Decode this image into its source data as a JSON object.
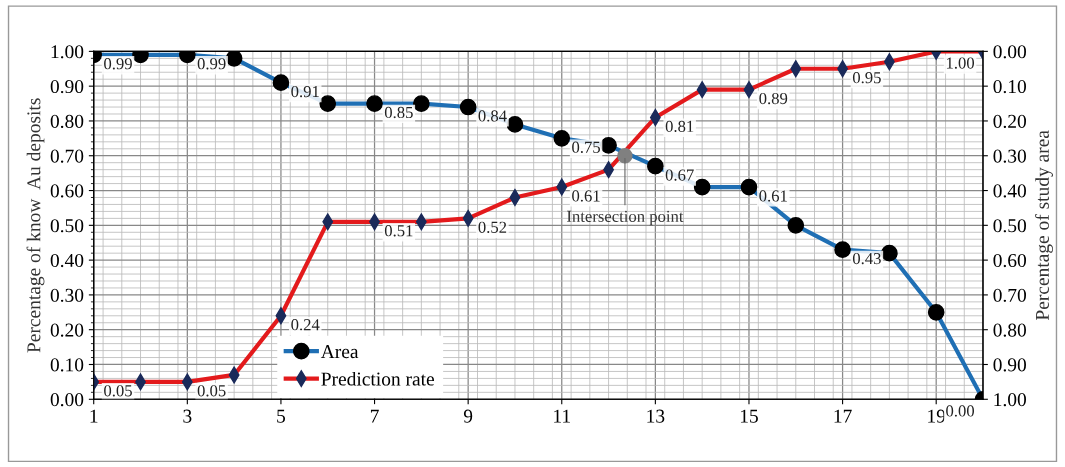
{
  "chart_data": {
    "type": "line",
    "ylabel": "Percentage of know  Au deposits",
    "y2label": "Percentage of study area",
    "x": [
      1,
      2,
      3,
      4,
      5,
      6,
      7,
      8,
      9,
      10,
      11,
      12,
      13,
      14,
      15,
      16,
      17,
      18,
      19,
      20
    ],
    "xlim": [
      1,
      20
    ],
    "xticks": [
      1,
      3,
      5,
      7,
      9,
      11,
      13,
      15,
      17,
      19
    ],
    "ylim": [
      0,
      1.0
    ],
    "yticks": [
      {
        "value": 0,
        "label": "0.00"
      },
      {
        "value": 0.1,
        "label": "0.10"
      },
      {
        "value": 0.2,
        "label": "0.20"
      },
      {
        "value": 0.3,
        "label": "0.30"
      },
      {
        "value": 0.4,
        "label": "0.40"
      },
      {
        "value": 0.5,
        "label": "0.50"
      },
      {
        "value": 0.6,
        "label": "0.60"
      },
      {
        "value": 0.7,
        "label": "0.70"
      },
      {
        "value": 0.8,
        "label": "0.80"
      },
      {
        "value": 0.9,
        "label": "0.90"
      },
      {
        "value": 1.0,
        "label": "1.00"
      }
    ],
    "y2lim": [
      1.0,
      0
    ],
    "y2ticks": [
      {
        "value": 0,
        "label": "0.00"
      },
      {
        "value": 0.1,
        "label": "0.10"
      },
      {
        "value": 0.2,
        "label": "0.20"
      },
      {
        "value": 0.3,
        "label": "0.30"
      },
      {
        "value": 0.4,
        "label": "0.40"
      },
      {
        "value": 0.5,
        "label": "0.50"
      },
      {
        "value": 0.6,
        "label": "0.60"
      },
      {
        "value": 0.7,
        "label": "0.70"
      },
      {
        "value": 0.8,
        "label": "0.80"
      },
      {
        "value": 0.9,
        "label": "0.90"
      },
      {
        "value": 1.0,
        "label": "1.00"
      }
    ],
    "grid": true,
    "legend": "bottom left",
    "line_style": "solid",
    "series": [
      {
        "name": "Area",
        "color": "#1f6fb4",
        "marker": "circle",
        "values": [
          0.99,
          0.99,
          0.99,
          0.98,
          0.91,
          0.85,
          0.85,
          0.85,
          0.84,
          0.79,
          0.75,
          0.73,
          0.67,
          0.61,
          0.61,
          0.5,
          0.43,
          0.42,
          0.25,
          0.0
        ],
        "value_labels": [
          "0.99",
          null,
          "0.99",
          null,
          "0.91",
          null,
          "0.85",
          null,
          "0.84",
          null,
          "0.75",
          null,
          "0.67",
          null,
          "0.61",
          null,
          "0.43",
          null,
          null,
          "0.00"
        ]
      },
      {
        "name": "Prediction rate",
        "color": "#e31a1c",
        "marker": "diamond",
        "values": [
          0.05,
          0.05,
          0.05,
          0.07,
          0.24,
          0.51,
          0.51,
          0.51,
          0.52,
          0.58,
          0.61,
          0.66,
          0.81,
          0.89,
          0.89,
          0.95,
          0.95,
          0.97,
          1.0,
          1.0
        ],
        "value_labels": [
          "0.05",
          null,
          "0.05",
          null,
          "0.24",
          null,
          "0.51",
          null,
          "0.52",
          null,
          "0.61",
          null,
          "0.81",
          null,
          "0.89",
          null,
          "0.95",
          null,
          null,
          "1.00"
        ]
      }
    ],
    "annotations": [
      {
        "text": "Intersection point",
        "x": 12.35,
        "y": 0.7
      }
    ]
  }
}
